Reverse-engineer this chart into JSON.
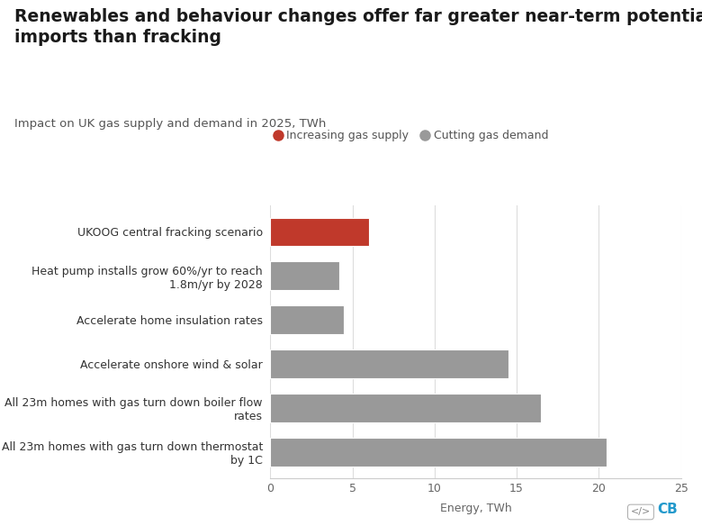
{
  "title": "Renewables and behaviour changes offer far greater near-term potential to replace gas\nimports than fracking",
  "subtitle": "Impact on UK gas supply and demand in 2025, TWh",
  "xlabel": "Energy, TWh",
  "categories": [
    "All 23m homes with gas turn down thermostat\nby 1C",
    "All 23m homes with gas turn down boiler flow\nrates",
    "Accelerate onshore wind & solar",
    "Accelerate home insulation rates",
    "Heat pump installs grow 60%/yr to reach\n1.8m/yr by 2028",
    "UKOOG central fracking scenario"
  ],
  "values": [
    20.5,
    16.5,
    14.5,
    4.5,
    4.2,
    6.0
  ],
  "colors": [
    "#999999",
    "#999999",
    "#999999",
    "#999999",
    "#999999",
    "#c0392b"
  ],
  "legend_labels": [
    "Increasing gas supply",
    "Cutting gas demand"
  ],
  "legend_colors": [
    "#c0392b",
    "#999999"
  ],
  "xlim": [
    0,
    25
  ],
  "xticks": [
    0,
    5,
    10,
    15,
    20,
    25
  ],
  "background_color": "#ffffff",
  "grid_color": "#dddddd",
  "title_fontsize": 13.5,
  "subtitle_fontsize": 9.5,
  "label_fontsize": 9,
  "tick_fontsize": 9,
  "bar_height": 0.65
}
